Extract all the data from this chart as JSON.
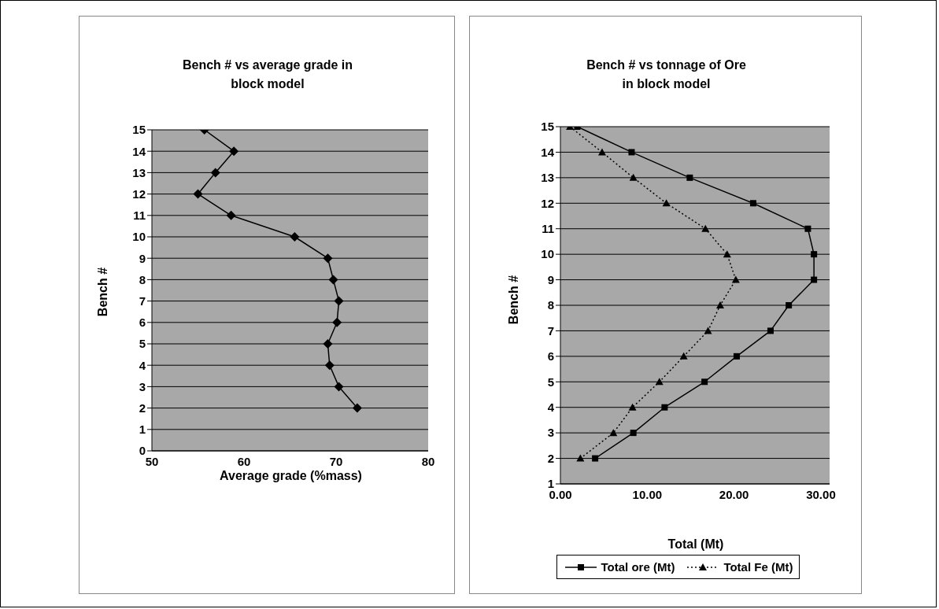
{
  "chart_data": [
    {
      "type": "line",
      "title": "Bench # vs average grade in block model",
      "xlabel": "Average grade (%mass)",
      "ylabel": "Bench #",
      "x": [
        55.7,
        58.9,
        56.9,
        55.0,
        58.6,
        65.5,
        69.1,
        69.7,
        70.3,
        70.1,
        69.1,
        69.3,
        70.3,
        72.3
      ],
      "values": [
        15,
        14,
        13,
        12,
        11,
        10,
        9,
        8,
        7,
        6,
        5,
        4,
        3,
        2
      ],
      "color": "#000000",
      "xlim": [
        50,
        80
      ],
      "xticks": [
        50,
        60,
        70,
        80
      ],
      "ylim": [
        0,
        15
      ],
      "yticks": [
        0,
        1,
        2,
        3,
        4,
        5,
        6,
        7,
        8,
        9,
        10,
        11,
        12,
        13,
        14,
        15
      ],
      "grid": "y",
      "marker": "diamond",
      "line_style": "solid"
    },
    {
      "type": "line",
      "title": "Bench # vs tonnage of Ore in block model",
      "xlabel": "Total (Mt)",
      "ylabel": "Bench #",
      "series": [
        {
          "name": "Total ore (Mt)",
          "color": "#000000",
          "marker": "square",
          "line_style": "solid",
          "x": [
            1.95,
            8.2,
            14.9,
            22.2,
            28.5,
            29.2,
            29.2,
            26.3,
            24.2,
            20.3,
            16.6,
            12.0,
            8.4,
            4.0
          ],
          "values": [
            15,
            14,
            13,
            12,
            11,
            10,
            9,
            8,
            7,
            6,
            5,
            4,
            3,
            2
          ]
        },
        {
          "name": "Total Fe (Mt)",
          "color": "#000000",
          "marker": "triangle",
          "line_style": "dotted",
          "x": [
            1.1,
            4.8,
            8.4,
            12.2,
            16.7,
            19.2,
            20.2,
            18.4,
            17.0,
            14.2,
            11.4,
            8.3,
            6.1,
            2.3
          ],
          "values": [
            15,
            14,
            13,
            12,
            11,
            10,
            9,
            8,
            7,
            6,
            5,
            4,
            3,
            2
          ]
        }
      ],
      "xlim": [
        0,
        31
      ],
      "xticks": [
        {
          "value": 0,
          "label": "0.00"
        },
        {
          "value": 10,
          "label": "10.00"
        },
        {
          "value": 20,
          "label": "20.00"
        },
        {
          "value": 30,
          "label": "30.00"
        }
      ],
      "ylim": [
        1,
        15
      ],
      "yticks": [
        1,
        2,
        3,
        4,
        5,
        6,
        7,
        8,
        9,
        10,
        11,
        12,
        13,
        14,
        15
      ],
      "grid": "y",
      "legend": "bottom"
    }
  ]
}
